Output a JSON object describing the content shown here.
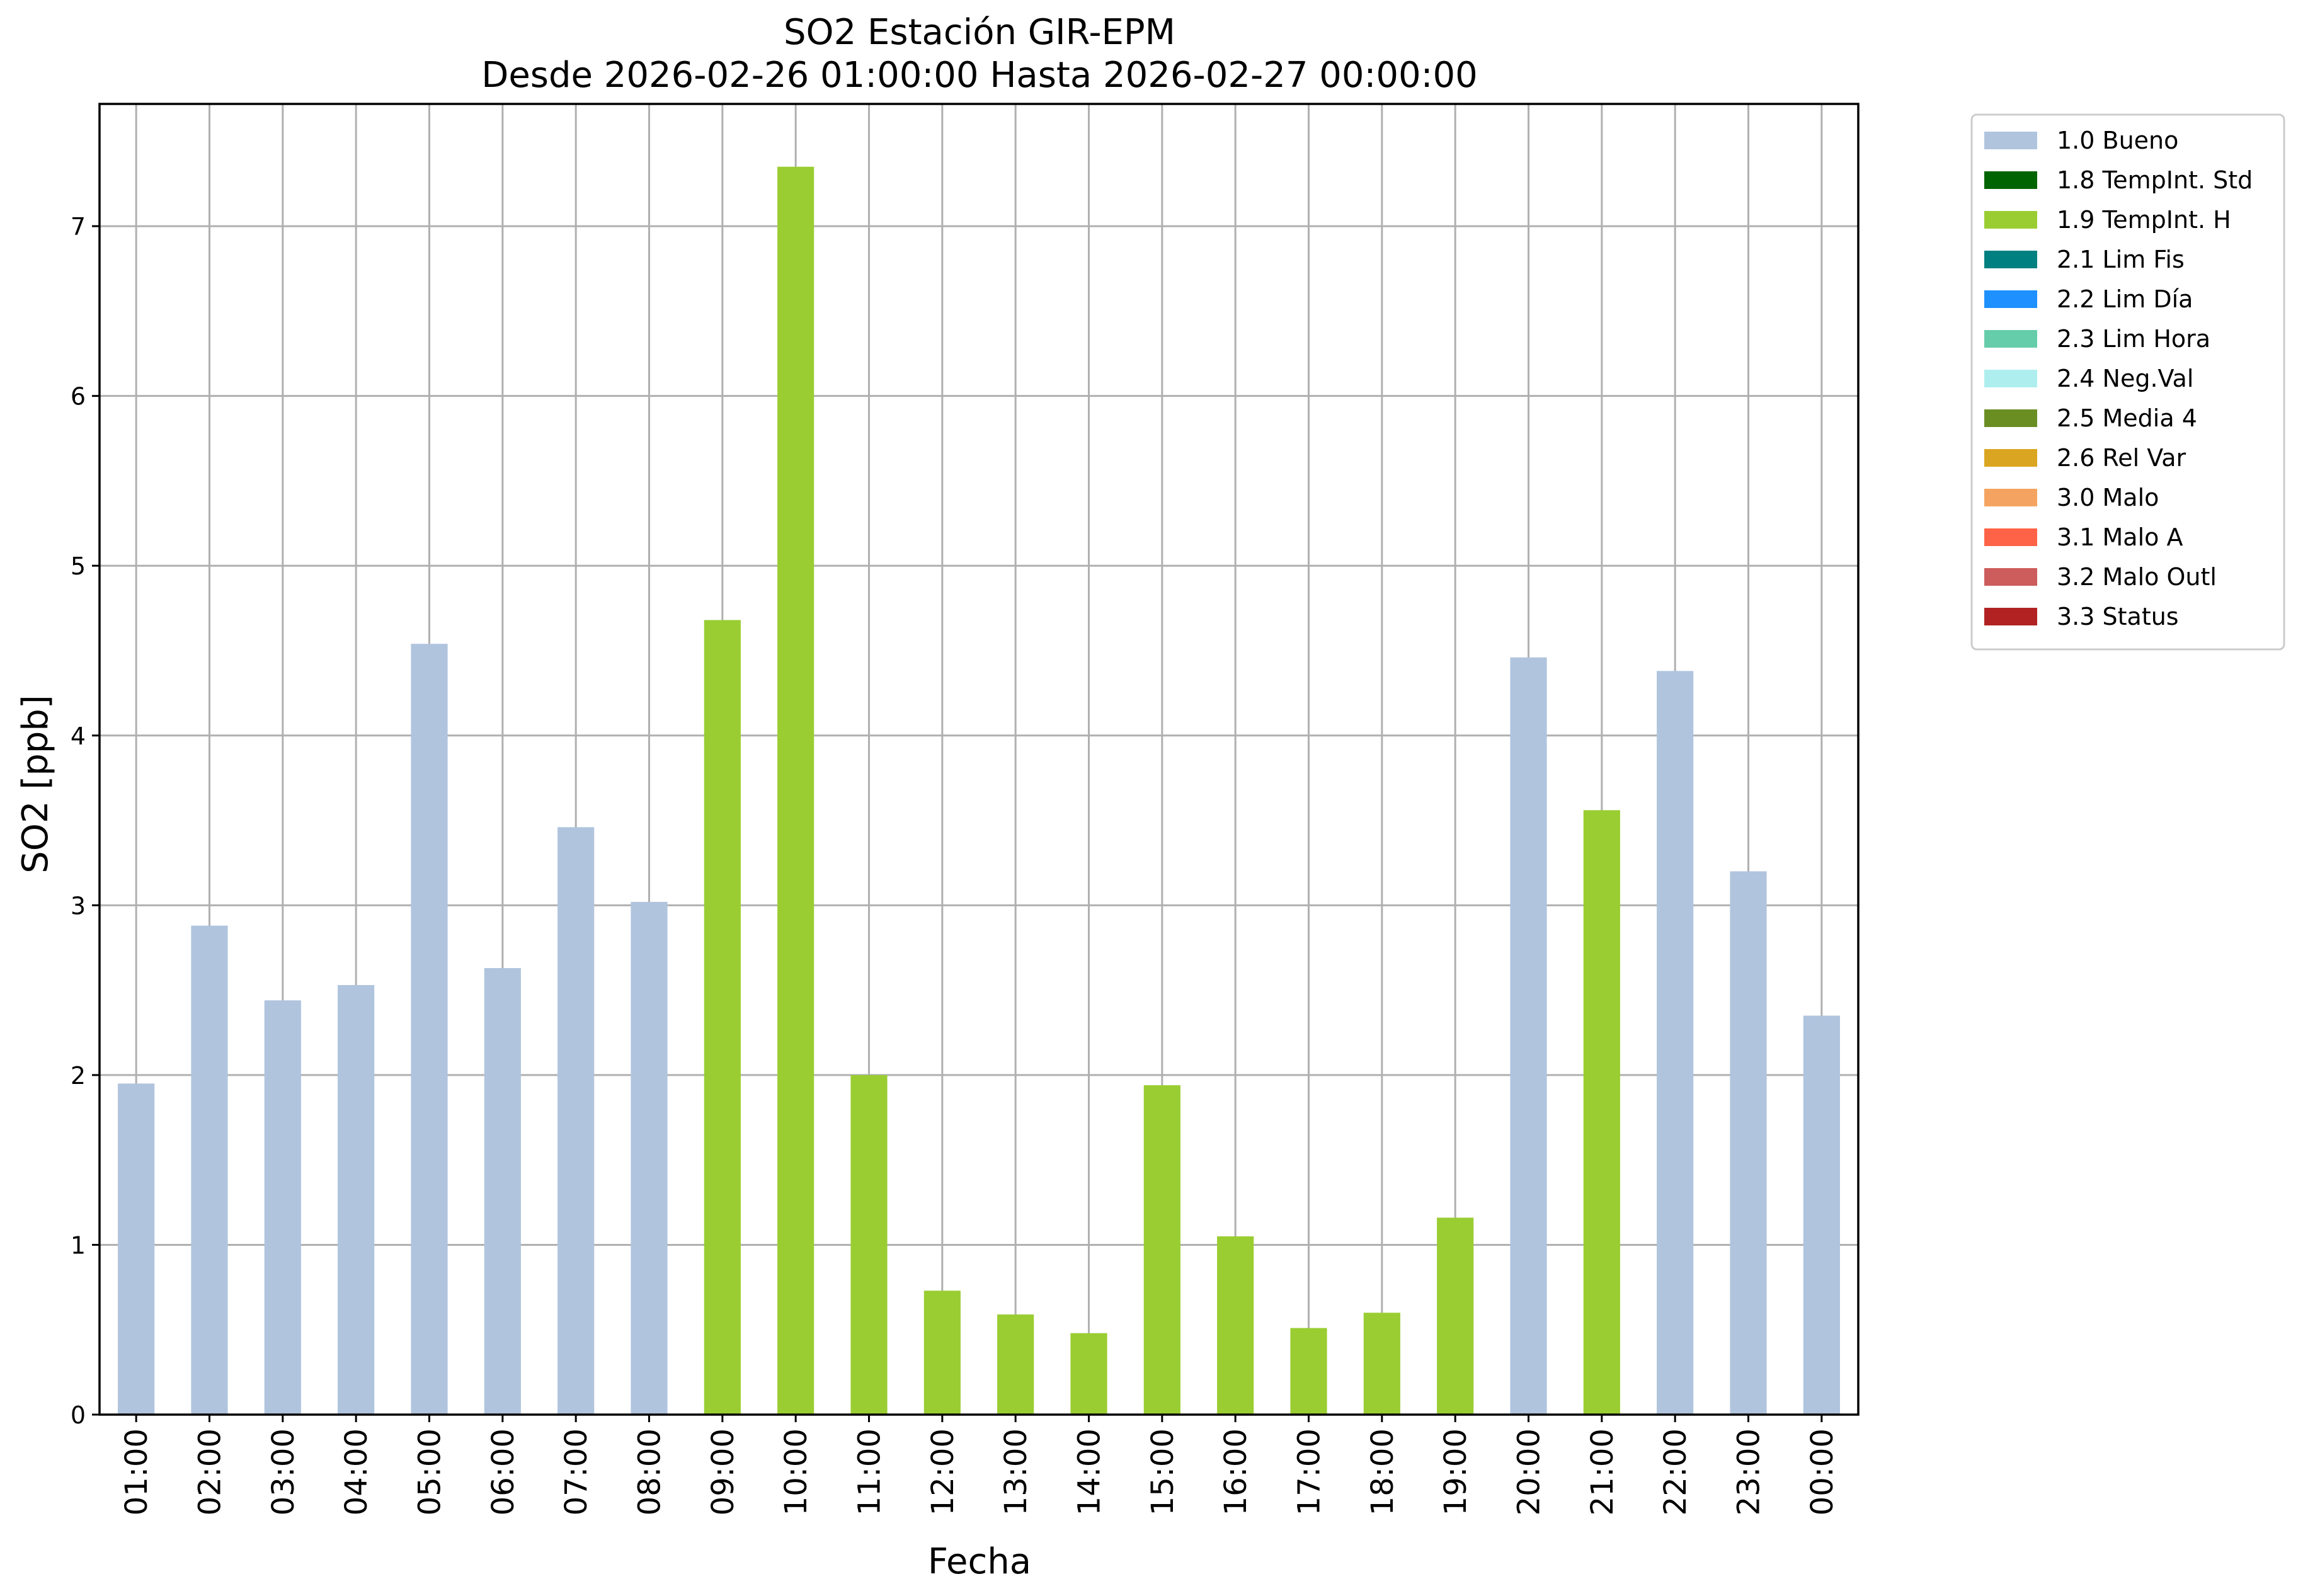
{
  "chart_data": {
    "type": "bar",
    "title_line1": "SO2 Estación GIR-EPM",
    "title_line2": "Desde 2026-02-26 01:00:00 Hasta 2026-02-27 00:00:00",
    "xlabel": "Fecha",
    "ylabel": "SO2 [ppb]",
    "ylim": [
      0,
      7.72
    ],
    "yticks": [
      0,
      1,
      2,
      3,
      4,
      5,
      6,
      7
    ],
    "grid": true,
    "legend_position": "outside-top-right",
    "categories": [
      "01:00",
      "02:00",
      "03:00",
      "04:00",
      "05:00",
      "06:00",
      "07:00",
      "08:00",
      "09:00",
      "10:00",
      "11:00",
      "12:00",
      "13:00",
      "14:00",
      "15:00",
      "16:00",
      "17:00",
      "18:00",
      "19:00",
      "20:00",
      "21:00",
      "22:00",
      "23:00",
      "00:00"
    ],
    "values": [
      1.95,
      2.88,
      2.44,
      2.53,
      4.54,
      2.63,
      3.46,
      3.02,
      4.68,
      7.35,
      2.0,
      0.73,
      0.59,
      0.48,
      1.94,
      1.05,
      0.51,
      0.6,
      1.16,
      4.46,
      3.56,
      4.38,
      3.2,
      2.35
    ],
    "flags": [
      "1.0 Bueno",
      "1.0 Bueno",
      "1.0 Bueno",
      "1.0 Bueno",
      "1.0 Bueno",
      "1.0 Bueno",
      "1.0 Bueno",
      "1.0 Bueno",
      "1.9 TempInt. H",
      "1.9 TempInt. H",
      "1.9 TempInt. H",
      "1.9 TempInt. H",
      "1.9 TempInt. H",
      "1.9 TempInt. H",
      "1.9 TempInt. H",
      "1.9 TempInt. H",
      "1.9 TempInt. H",
      "1.9 TempInt. H",
      "1.9 TempInt. H",
      "1.0 Bueno",
      "1.9 TempInt. H",
      "1.0 Bueno",
      "1.0 Bueno",
      "1.0 Bueno"
    ],
    "legend": [
      {
        "label": "1.0 Bueno",
        "color": "#b0c4de"
      },
      {
        "label": "1.8 TempInt. Std",
        "color": "#006400"
      },
      {
        "label": "1.9 TempInt. H",
        "color": "#9acd32"
      },
      {
        "label": "2.1 Lim Fis",
        "color": "#008080"
      },
      {
        "label": "2.2 Lim Día",
        "color": "#1e90ff"
      },
      {
        "label": "2.3 Lim Hora",
        "color": "#66cdaa"
      },
      {
        "label": "2.4 Neg.Val",
        "color": "#afeeee"
      },
      {
        "label": "2.5 Media 4",
        "color": "#6b8e23"
      },
      {
        "label": "2.6 Rel Var",
        "color": "#daa520"
      },
      {
        "label": "3.0 Malo",
        "color": "#f4a460"
      },
      {
        "label": "3.1 Malo A",
        "color": "#ff6347"
      },
      {
        "label": "3.2 Malo Outl",
        "color": "#cd5c5c"
      },
      {
        "label": "3.3 Status",
        "color": "#b22222"
      }
    ]
  }
}
